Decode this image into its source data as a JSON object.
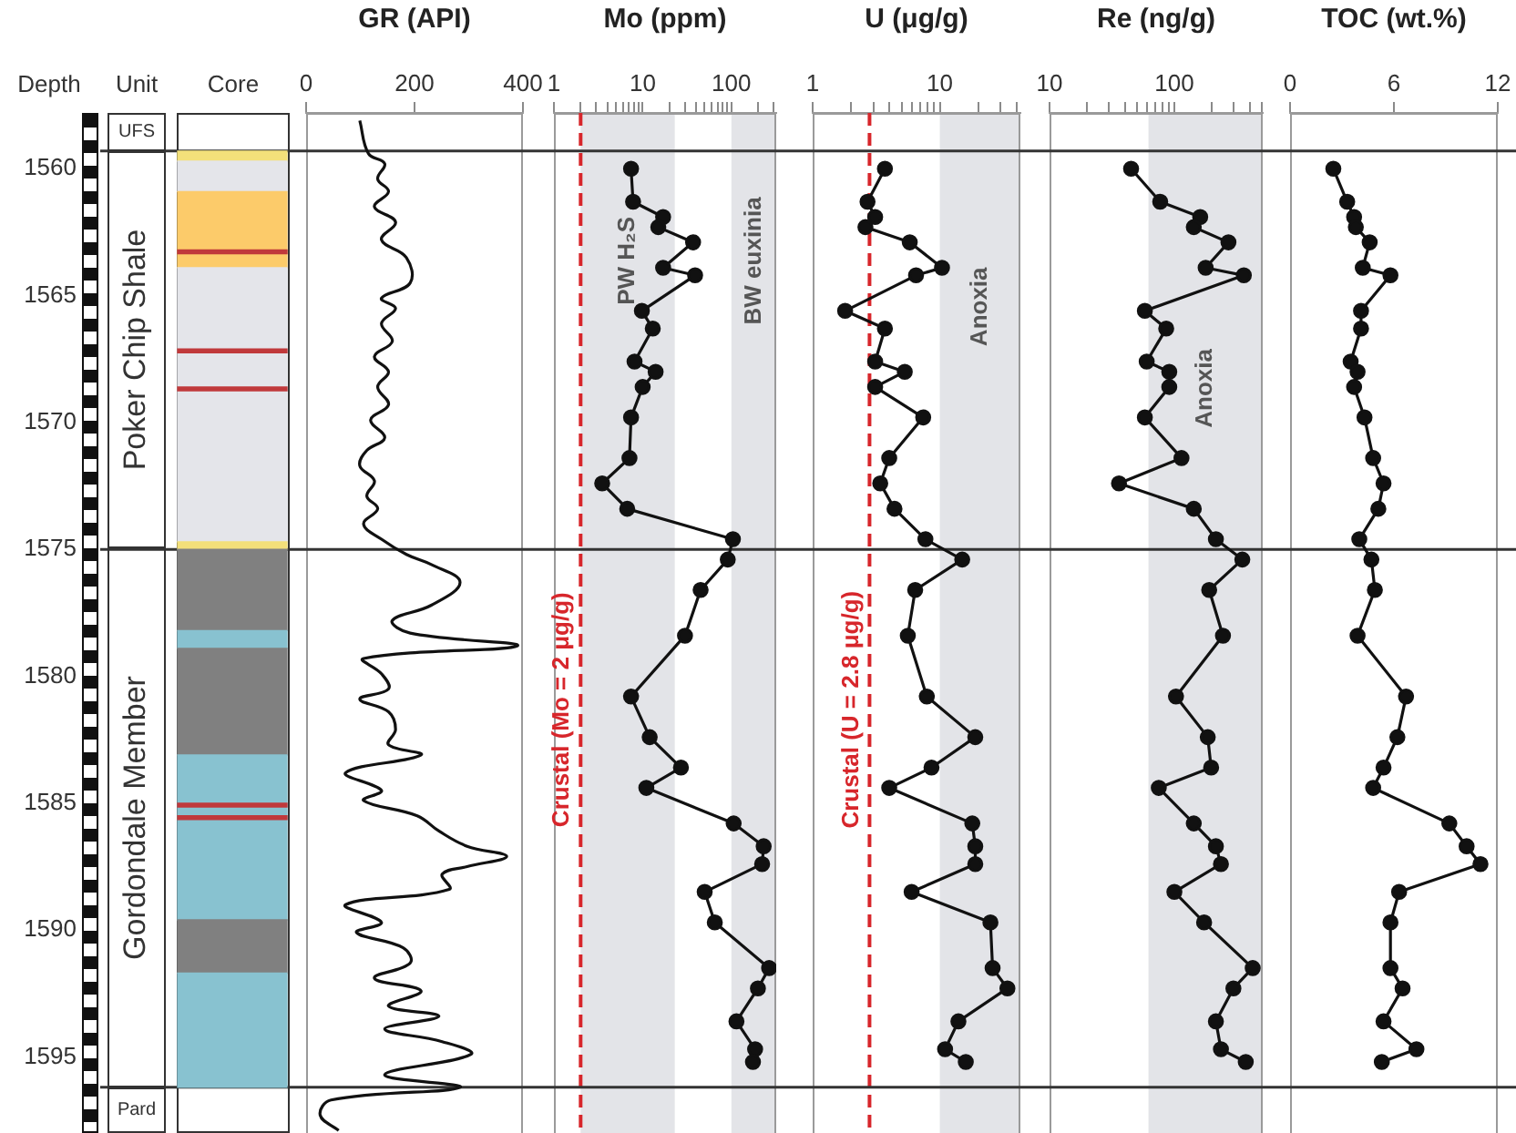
{
  "chart_data": [
    {
      "type": "bar",
      "ylabel": "Depth",
      "annotations": [
        "Unit",
        "Core",
        "UFS",
        "Poker Chip Shale",
        "Gordondale Member",
        "Pard"
      ],
      "categories": [
        null
      ],
      "ylim": [
        1598,
        1557.8
      ],
      "yticks": [
        1560,
        1565,
        1570,
        1575,
        1580,
        1585,
        1590,
        1595
      ],
      "ref_lines": [
        {
          "axis": "y",
          "value": 1559.3,
          "color": "#333333"
        },
        {
          "axis": "y",
          "value": 1575,
          "color": "#333333"
        },
        {
          "axis": "y",
          "value": 1596.2,
          "color": "#333333"
        }
      ],
      "series": [
        {
          "color": "#f3e07a",
          "base": [
            1559.3
          ],
          "values": [
            0.4
          ]
        },
        {
          "color": "#e4e5ea",
          "base": [
            1559.7
          ],
          "values": [
            1.2
          ]
        },
        {
          "color": "#fccb6a",
          "base": [
            1560.9
          ],
          "values": [
            3.0
          ]
        },
        {
          "color": "#e4e5ea",
          "base": [
            1563.9
          ],
          "values": [
            10.8
          ]
        },
        {
          "color": "#f3e07a",
          "base": [
            1574.7
          ],
          "values": [
            0.3
          ]
        },
        {
          "color": "#808080",
          "base": [
            1575.0
          ],
          "values": [
            3.2
          ]
        },
        {
          "color": "#88c2d0",
          "base": [
            1578.2
          ],
          "values": [
            0.7
          ]
        },
        {
          "color": "#808080",
          "base": [
            1578.9
          ],
          "values": [
            4.2
          ]
        },
        {
          "color": "#88c2d0",
          "base": [
            1583.1
          ],
          "values": [
            6.5
          ]
        },
        {
          "color": "#808080",
          "base": [
            1589.6
          ],
          "values": [
            2.1
          ]
        },
        {
          "color": "#88c2d0",
          "base": [
            1591.7
          ],
          "values": [
            4.5
          ]
        },
        {
          "color": "#c0393b",
          "base": [
            1563.2
          ],
          "values": [
            0.15
          ]
        },
        {
          "color": "#c0393b",
          "base": [
            1567.1
          ],
          "values": [
            0.15
          ]
        },
        {
          "color": "#c0393b",
          "base": [
            1568.6
          ],
          "values": [
            0.15
          ]
        },
        {
          "color": "#c0393b",
          "base": [
            1585.0
          ],
          "values": [
            0.15
          ]
        },
        {
          "color": "#c0393b",
          "base": [
            1585.5
          ],
          "values": [
            0.15
          ]
        }
      ]
    },
    {
      "type": "line",
      "xlabel": "GR (API)",
      "marker": "none",
      "tick_labels": "x",
      "xlim": [
        0,
        400
      ],
      "xticks": [
        0,
        200,
        400
      ],
      "ylim": [
        1598,
        1557.8
      ],
      "ref_lines": [
        {
          "axis": "y",
          "value": 1559.3,
          "color": "#333333"
        },
        {
          "axis": "y",
          "value": 1575,
          "color": "#333333"
        },
        {
          "axis": "y",
          "value": 1596.2,
          "color": "#333333"
        }
      ],
      "series": [
        {
          "color": "#111111",
          "x": [
            99,
            115,
            145,
            132,
            152,
            126,
            165,
            139,
            185,
            192,
            139,
            165,
            139,
            159,
            126,
            152,
            132,
            152,
            119,
            145,
            112,
            99,
            126,
            112,
            132,
            106,
            139,
            185,
            231,
            284,
            231,
            159,
            192,
            390,
            106,
            139,
            152,
            99,
            152,
            165,
            152,
            212,
            73,
            139,
            106,
            205,
            245,
            297,
            370,
            297,
            251,
            264,
            73,
            139,
            93,
            179,
            192,
            126,
            212,
            152,
            245,
            145,
            251,
            304,
            145,
            284,
            46,
            26,
            60
          ],
          "values": [
            1558.1,
            1559.4,
            1559.8,
            1560.4,
            1560.9,
            1561.5,
            1562.1,
            1562.8,
            1563.5,
            1564.5,
            1565.1,
            1565.5,
            1566.1,
            1566.8,
            1567.4,
            1568.0,
            1568.6,
            1569.3,
            1569.9,
            1570.6,
            1571.1,
            1571.7,
            1572.3,
            1572.9,
            1573.4,
            1574.0,
            1574.6,
            1575.2,
            1575.6,
            1576.3,
            1577.2,
            1577.8,
            1578.3,
            1578.8,
            1579.3,
            1579.9,
            1580.5,
            1580.9,
            1581.4,
            1582.1,
            1582.7,
            1583.1,
            1583.8,
            1584.5,
            1584.9,
            1585.5,
            1586.1,
            1586.7,
            1587.1,
            1587.5,
            1587.8,
            1588.4,
            1589.0,
            1589.7,
            1590.1,
            1590.7,
            1591.3,
            1591.9,
            1592.4,
            1593.0,
            1593.4,
            1593.9,
            1594.4,
            1594.9,
            1595.7,
            1596.2,
            1596.7,
            1597.3,
            1597.9
          ]
        }
      ]
    },
    {
      "type": "line",
      "xlabel": "Mo (ppm)",
      "log": "x",
      "marker": "circle",
      "tick_labels": "x",
      "xlim": [
        1,
        320
      ],
      "xticks": [
        1,
        {
          "value": 2,
          "label": null
        },
        {
          "value": 3,
          "label": null
        },
        {
          "value": 4,
          "label": null
        },
        {
          "value": 5,
          "label": null
        },
        {
          "value": 6,
          "label": null
        },
        {
          "value": 7,
          "label": null
        },
        {
          "value": 8,
          "label": null
        },
        {
          "value": 9,
          "label": null
        },
        10,
        {
          "value": 20,
          "label": null
        },
        {
          "value": 30,
          "label": null
        },
        {
          "value": 40,
          "label": null
        },
        {
          "value": 50,
          "label": null
        },
        {
          "value": 60,
          "label": null
        },
        {
          "value": 70,
          "label": null
        },
        {
          "value": 80,
          "label": null
        },
        {
          "value": 90,
          "label": null
        },
        100,
        {
          "value": 200,
          "label": null
        },
        {
          "value": 300,
          "label": null
        }
      ],
      "ylim": [
        1598,
        1557.8
      ],
      "bands": [
        {
          "axis": "x",
          "from": 2,
          "to": 23,
          "label": "PW H₂S",
          "color": "#e3e4e8"
        },
        {
          "axis": "x",
          "from": 100,
          "to": 320,
          "label": "BW euxinia",
          "color": "#e3e4e8"
        }
      ],
      "ref_lines": [
        {
          "axis": "x",
          "value": 2,
          "label": "Crustal (Mo = 2 μg/g)",
          "color": "#d7262b",
          "line_style": "dashed"
        },
        {
          "axis": "y",
          "value": 1559.3,
          "color": "#333333"
        },
        {
          "axis": "y",
          "value": 1575,
          "color": "#333333"
        },
        {
          "axis": "y",
          "value": 1596.2,
          "color": "#333333"
        }
      ],
      "series": [
        {
          "color": "#111111",
          "x": [
            7.4,
            7.8,
            17,
            15,
            37,
            17,
            39,
            9.8,
            13,
            8.1,
            14,
            10,
            7.4,
            7.1,
            3.5,
            6.7,
            104,
            91,
            45,
            30,
            7.4,
            12,
            27,
            11,
            106,
            231,
            222,
            50,
            65,
            266,
            199,
            114,
            185,
            175
          ],
          "values": [
            1560.0,
            1561.3,
            1561.9,
            1562.3,
            1562.9,
            1563.9,
            1564.2,
            1565.6,
            1566.3,
            1567.6,
            1568.0,
            1568.6,
            1569.8,
            1571.4,
            1572.4,
            1573.4,
            1574.6,
            1575.4,
            1576.6,
            1578.4,
            1580.8,
            1582.4,
            1583.6,
            1584.4,
            1585.8,
            1586.7,
            1587.4,
            1588.5,
            1589.7,
            1591.5,
            1592.3,
            1593.6,
            1594.7,
            1595.2
          ]
        }
      ]
    },
    {
      "type": "line",
      "xlabel": "U (μg/g)",
      "log": "x",
      "marker": "circle",
      "tick_labels": "x",
      "xlim": [
        1,
        43
      ],
      "xticks": [
        1,
        {
          "value": 2,
          "label": null
        },
        {
          "value": 3,
          "label": null
        },
        {
          "value": 4,
          "label": null
        },
        {
          "value": 5,
          "label": null
        },
        {
          "value": 6,
          "label": null
        },
        {
          "value": 7,
          "label": null
        },
        {
          "value": 8,
          "label": null
        },
        {
          "value": 9,
          "label": null
        },
        10,
        {
          "value": 20,
          "label": null
        },
        {
          "value": 30,
          "label": null
        },
        {
          "value": 40,
          "label": null
        }
      ],
      "ylim": [
        1598,
        1557.8
      ],
      "bands": [
        {
          "axis": "x",
          "from": 10,
          "to": 43,
          "label": "Anoxia",
          "color": "#e3e4e8"
        }
      ],
      "ref_lines": [
        {
          "axis": "x",
          "value": 2.8,
          "label": "Crustal (U = 2.8 μg/g)",
          "color": "#d7262b",
          "line_style": "dashed"
        },
        {
          "axis": "y",
          "value": 1559.3,
          "color": "#333333"
        },
        {
          "axis": "y",
          "value": 1575,
          "color": "#333333"
        },
        {
          "axis": "y",
          "value": 1596.2,
          "color": "#333333"
        }
      ],
      "series": [
        {
          "color": "#111111",
          "x": [
            3.7,
            2.7,
            3.1,
            2.6,
            5.8,
            10.4,
            6.5,
            1.8,
            3.7,
            3.1,
            5.3,
            3.1,
            7.4,
            4.0,
            3.4,
            4.4,
            7.7,
            15,
            6.4,
            5.6,
            7.9,
            19,
            8.6,
            4.0,
            18,
            19,
            19,
            6.0,
            25,
            26,
            34,
            14,
            11,
            16
          ],
          "values": [
            1560.0,
            1561.3,
            1561.9,
            1562.3,
            1562.9,
            1563.9,
            1564.2,
            1565.6,
            1566.3,
            1567.6,
            1568.0,
            1568.6,
            1569.8,
            1571.4,
            1572.4,
            1573.4,
            1574.6,
            1575.4,
            1576.6,
            1578.4,
            1580.8,
            1582.4,
            1583.6,
            1584.4,
            1585.8,
            1586.7,
            1587.4,
            1588.5,
            1589.7,
            1591.5,
            1592.3,
            1593.6,
            1594.7,
            1595.2
          ]
        }
      ]
    },
    {
      "type": "line",
      "xlabel": "Re (ng/g)",
      "log": "x",
      "marker": "circle",
      "tick_labels": "x",
      "xlim": [
        10,
        510
      ],
      "xticks": [
        10,
        {
          "value": 20,
          "label": null
        },
        {
          "value": 30,
          "label": null
        },
        {
          "value": 40,
          "label": null
        },
        {
          "value": 50,
          "label": null
        },
        {
          "value": 60,
          "label": null
        },
        {
          "value": 70,
          "label": null
        },
        {
          "value": 80,
          "label": null
        },
        {
          "value": 90,
          "label": null
        },
        100,
        {
          "value": 200,
          "label": null
        },
        {
          "value": 300,
          "label": null
        },
        {
          "value": 400,
          "label": null
        },
        {
          "value": 500,
          "label": null
        }
      ],
      "ylim": [
        1598,
        1557.8
      ],
      "bands": [
        {
          "axis": "x",
          "from": 62,
          "to": 510,
          "label": "Anoxia",
          "color": "#e3e4e8"
        }
      ],
      "ref_lines": [
        {
          "axis": "y",
          "value": 1559.3,
          "color": "#333333"
        },
        {
          "axis": "y",
          "value": 1575,
          "color": "#333333"
        },
        {
          "axis": "y",
          "value": 1596.2,
          "color": "#333333"
        }
      ],
      "series": [
        {
          "color": "#111111",
          "x": [
            45,
            77,
            161,
            143,
            271,
            178,
            360,
            58,
            86,
            60,
            91,
            91,
            58,
            114,
            36,
            143,
            215,
            350,
            190,
            245,
            103,
            185,
            197,
            75,
            143,
            215,
            236,
            100,
            173,
            424,
            297,
            215,
            236,
            373
          ],
          "values": [
            1560.0,
            1561.3,
            1561.9,
            1562.3,
            1562.9,
            1563.9,
            1564.2,
            1565.6,
            1566.3,
            1567.6,
            1568.0,
            1568.6,
            1569.8,
            1571.4,
            1572.4,
            1573.4,
            1574.6,
            1575.4,
            1576.6,
            1578.4,
            1580.8,
            1582.4,
            1583.6,
            1584.4,
            1585.8,
            1586.7,
            1587.4,
            1588.5,
            1589.7,
            1591.5,
            1592.3,
            1593.6,
            1594.7,
            1595.2
          ]
        }
      ]
    },
    {
      "type": "line",
      "xlabel": "TOC (wt.%)",
      "marker": "circle",
      "tick_labels": "x",
      "xlim": [
        0,
        12
      ],
      "xticks": [
        0,
        6,
        12
      ],
      "ylim": [
        1598,
        1557.8
      ],
      "ref_lines": [
        {
          "axis": "y",
          "value": 1559.3,
          "color": "#333333"
        },
        {
          "axis": "y",
          "value": 1575,
          "color": "#333333"
        },
        {
          "axis": "y",
          "value": 1596.2,
          "color": "#333333"
        }
      ],
      "series": [
        {
          "color": "#111111",
          "x": [
            2.5,
            3.3,
            3.7,
            3.8,
            4.6,
            4.2,
            5.8,
            4.1,
            4.1,
            3.5,
            3.9,
            3.7,
            4.3,
            4.8,
            5.4,
            5.1,
            4.0,
            4.7,
            4.9,
            3.9,
            6.7,
            6.2,
            5.4,
            4.8,
            9.2,
            10.2,
            11.0,
            6.3,
            5.8,
            5.8,
            6.5,
            5.4,
            7.3,
            5.3
          ],
          "values": [
            1560.0,
            1561.3,
            1561.9,
            1562.3,
            1562.9,
            1563.9,
            1564.2,
            1565.6,
            1566.3,
            1567.6,
            1568.0,
            1568.6,
            1569.8,
            1571.4,
            1572.4,
            1573.4,
            1574.6,
            1575.4,
            1576.6,
            1578.4,
            1580.8,
            1582.4,
            1583.6,
            1584.4,
            1585.8,
            1586.7,
            1587.4,
            1588.5,
            1589.7,
            1591.5,
            1592.3,
            1593.6,
            1594.7,
            1595.2
          ]
        }
      ]
    }
  ]
}
